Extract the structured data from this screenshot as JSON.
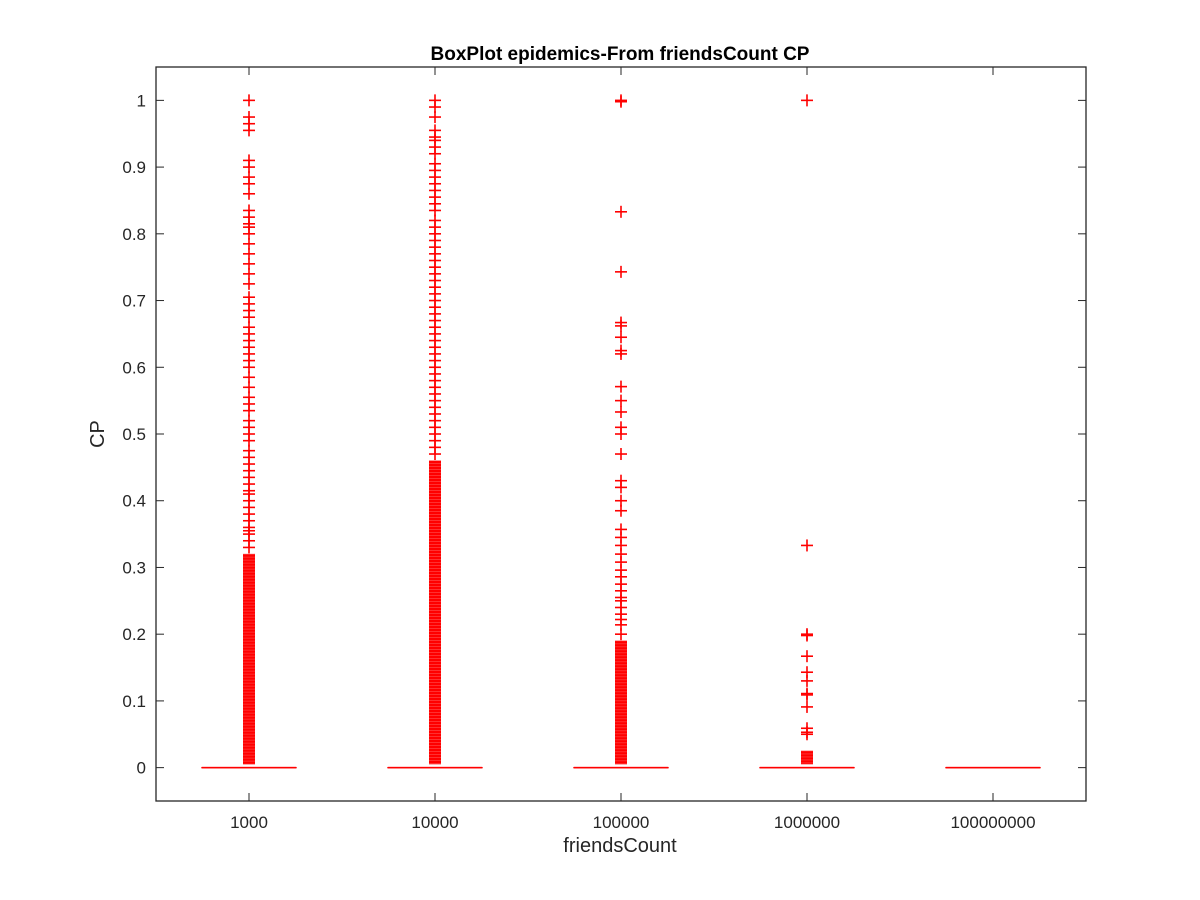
{
  "chart_data": {
    "type": "box",
    "title": "BoxPlot epidemics-From friendsCount CP",
    "xlabel": "friendsCount",
    "ylabel": "CP",
    "categories": [
      "1000",
      "10000",
      "100000",
      "1000000",
      "100000000"
    ],
    "y_ticks": [
      0,
      0.1,
      0.2,
      0.3,
      0.4,
      0.5,
      0.6,
      0.7,
      0.8,
      0.9,
      1
    ],
    "ylim": [
      -0.05,
      1.05
    ],
    "grid": false,
    "marker_color": "#ff0000",
    "boxes": [
      {
        "category": "1000",
        "median": 0,
        "q1": 0,
        "q3": 0,
        "whisker_low": 0,
        "whisker_high": 0,
        "dense_outlier_range": [
          0.005,
          0.32
        ],
        "outliers": [
          1.0,
          0.975,
          0.965,
          0.955,
          0.91,
          0.9,
          0.885,
          0.875,
          0.86,
          0.835,
          0.825,
          0.815,
          0.81,
          0.8,
          0.785,
          0.77,
          0.755,
          0.74,
          0.725,
          0.705,
          0.695,
          0.685,
          0.675,
          0.66,
          0.65,
          0.64,
          0.63,
          0.62,
          0.61,
          0.6,
          0.585,
          0.57,
          0.555,
          0.545,
          0.535,
          0.52,
          0.51,
          0.5,
          0.49,
          0.475,
          0.465,
          0.455,
          0.445,
          0.435,
          0.425,
          0.415,
          0.41,
          0.4,
          0.39,
          0.38,
          0.37,
          0.36,
          0.355,
          0.35,
          0.34,
          0.33
        ]
      },
      {
        "category": "10000",
        "median": 0,
        "q1": 0,
        "q3": 0,
        "whisker_low": 0,
        "whisker_high": 0,
        "dense_outlier_range": [
          0.005,
          0.46
        ],
        "outliers": [
          1.0,
          0.99,
          0.975,
          0.955,
          0.945,
          0.94,
          0.93,
          0.92,
          0.905,
          0.895,
          0.885,
          0.875,
          0.865,
          0.855,
          0.845,
          0.835,
          0.82,
          0.81,
          0.8,
          0.79,
          0.78,
          0.77,
          0.76,
          0.75,
          0.74,
          0.73,
          0.72,
          0.71,
          0.7,
          0.69,
          0.68,
          0.67,
          0.66,
          0.65,
          0.64,
          0.63,
          0.62,
          0.61,
          0.6,
          0.59,
          0.58,
          0.57,
          0.56,
          0.55,
          0.54,
          0.53,
          0.52,
          0.51,
          0.5,
          0.49,
          0.48,
          0.47
        ]
      },
      {
        "category": "100000",
        "median": 0,
        "q1": 0,
        "q3": 0,
        "whisker_low": 0,
        "whisker_high": 0,
        "dense_outlier_range": [
          0.005,
          0.19
        ],
        "outliers": [
          1.0,
          0.998,
          0.833,
          0.743,
          0.667,
          0.662,
          0.645,
          0.625,
          0.62,
          0.571,
          0.55,
          0.533,
          0.51,
          0.5,
          0.47,
          0.43,
          0.42,
          0.4,
          0.385,
          0.357,
          0.345,
          0.333,
          0.32,
          0.308,
          0.296,
          0.286,
          0.275,
          0.265,
          0.255,
          0.25,
          0.24,
          0.23,
          0.222,
          0.214,
          0.2
        ]
      },
      {
        "category": "1000000",
        "median": 0,
        "q1": 0,
        "q3": 0,
        "whisker_low": 0,
        "whisker_high": 0,
        "dense_outlier_range": [
          0.005,
          0.025
        ],
        "outliers": [
          1.0,
          0.333,
          0.2,
          0.198,
          0.167,
          0.143,
          0.13,
          0.111,
          0.109,
          0.091,
          0.059,
          0.053,
          0.05
        ]
      },
      {
        "category": "100000000",
        "median": 0,
        "q1": 0,
        "q3": 0,
        "whisker_low": 0,
        "whisker_high": 0,
        "dense_outlier_range": null,
        "outliers": []
      }
    ]
  }
}
